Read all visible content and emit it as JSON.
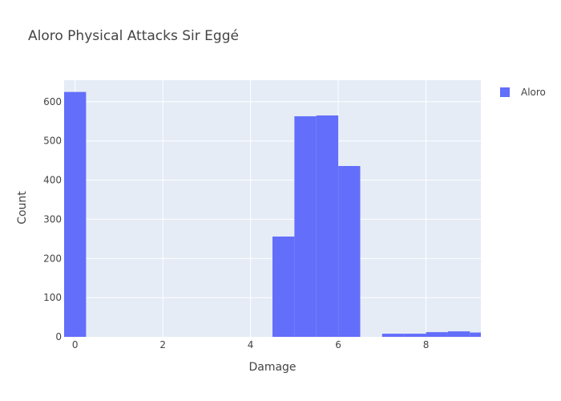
{
  "chart_data": {
    "type": "bar",
    "title": "Aloro Physical Attacks Sir Eggé",
    "xlabel": "Damage",
    "ylabel": "Count",
    "xlim": [
      -0.25,
      9.25
    ],
    "ylim": [
      0,
      655
    ],
    "xticks": [
      0,
      2,
      4,
      6,
      8
    ],
    "yticks": [
      0,
      100,
      200,
      300,
      400,
      500,
      600
    ],
    "bin_width": 0.5,
    "grid": true,
    "legend_position": "top-right",
    "series": [
      {
        "name": "Aloro",
        "color": "#636efa",
        "bins": [
          {
            "x": 0.0,
            "y": 625
          },
          {
            "x": 4.75,
            "y": 256
          },
          {
            "x": 5.25,
            "y": 563
          },
          {
            "x": 5.75,
            "y": 565
          },
          {
            "x": 6.25,
            "y": 436
          },
          {
            "x": 6.75,
            "y": 0
          },
          {
            "x": 7.25,
            "y": 8
          },
          {
            "x": 7.75,
            "y": 8
          },
          {
            "x": 8.25,
            "y": 12
          },
          {
            "x": 8.75,
            "y": 14
          },
          {
            "x": 9.25,
            "y": 11
          }
        ]
      }
    ]
  }
}
